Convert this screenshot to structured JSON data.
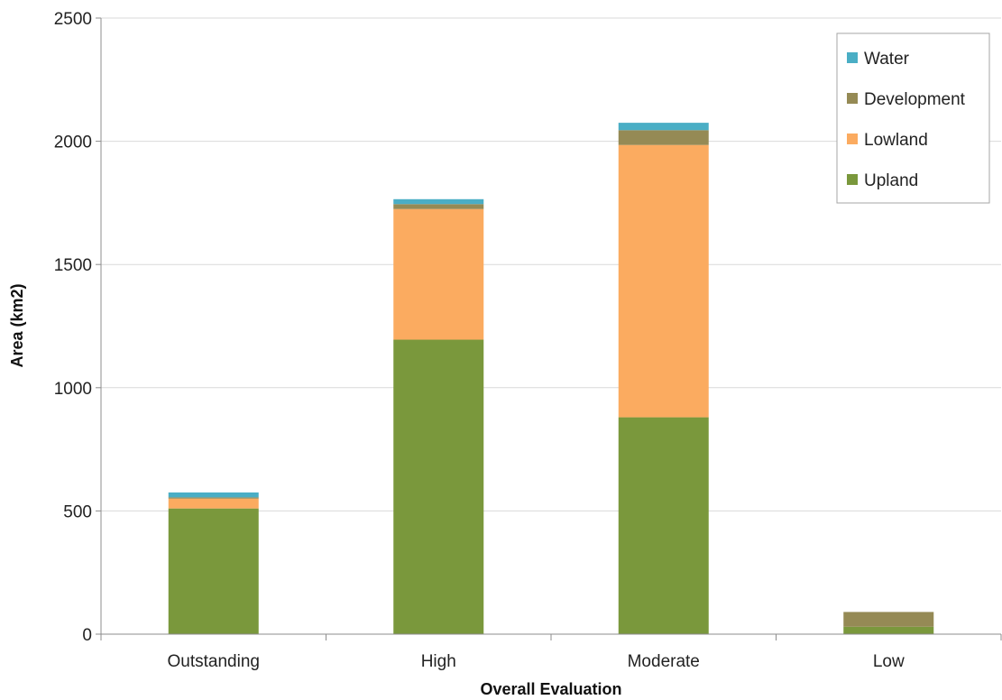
{
  "chart_data": {
    "type": "bar",
    "stacked": true,
    "title": "",
    "xlabel": "Overall Evaluation",
    "ylabel": "Area (km2)",
    "ylim": [
      0,
      2500
    ],
    "yticks": [
      0,
      500,
      1000,
      1500,
      2000,
      2500
    ],
    "grid": true,
    "legend_position": "top-right",
    "categories": [
      "Outstanding",
      "High",
      "Moderate",
      "Low"
    ],
    "series": [
      {
        "name": "Upland",
        "color": "#7a983c",
        "values": [
          510,
          1195,
          880,
          30
        ]
      },
      {
        "name": "Lowland",
        "color": "#fbab60",
        "values": [
          40,
          530,
          1105,
          0
        ]
      },
      {
        "name": "Development",
        "color": "#958a55",
        "values": [
          5,
          20,
          60,
          60
        ]
      },
      {
        "name": "Water",
        "color": "#4aaec5",
        "values": [
          20,
          20,
          30,
          0
        ]
      }
    ],
    "legend_order": [
      "Water",
      "Development",
      "Lowland",
      "Upland"
    ]
  }
}
